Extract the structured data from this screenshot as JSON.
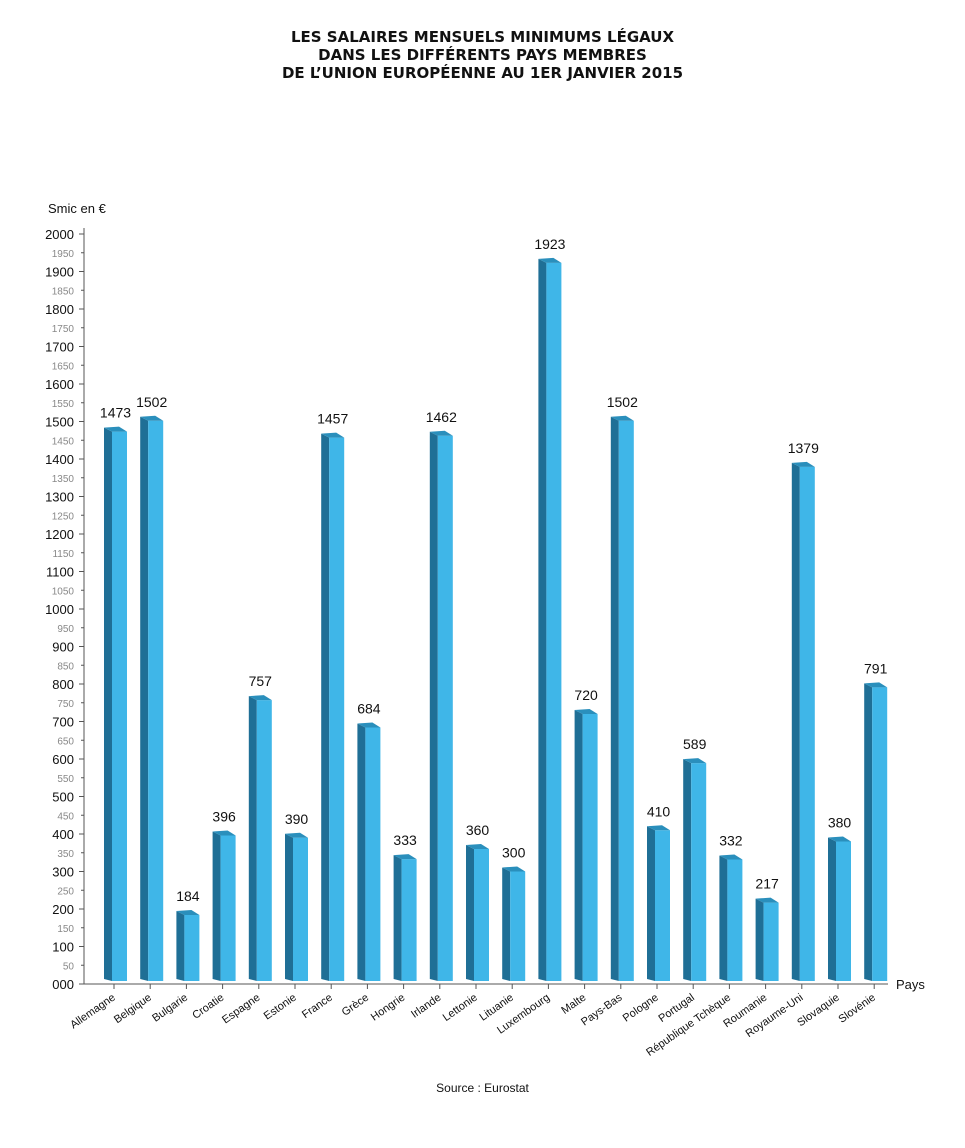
{
  "title_lines": [
    "LES SALAIRES MENSUELS MINIMUMS LÉGAUX",
    "DANS LES DIFFÉRENTS PAYS MEMBRES",
    "DE L’UNION EUROPÉENNE AU 1ER JANVIER 2015"
  ],
  "source": "Source : Eurostat",
  "colors": {
    "bar_front": "#3fb6e8",
    "bar_side": "#1f6f96",
    "bar_top": "#2a8fbc",
    "axis": "#555555"
  },
  "chart_data": {
    "type": "bar",
    "title": "LES SALAIRES MENSUELS MINIMUMS LÉGAUX DANS LES DIFFÉRENTS PAYS MEMBRES DE L’UNION EUROPÉENNE AU 1ER JANVIER 2015",
    "ylabel": "Smic en €",
    "xlabel": "Pays",
    "ylim": [
      0,
      2000
    ],
    "grid": false,
    "legend": "none",
    "categories": [
      "Allemagne",
      "Belgique",
      "Bulgarie",
      "Croatie",
      "Espagne",
      "Estonie",
      "France",
      "Grèce",
      "Hongrie",
      "Irlande",
      "Lettonie",
      "Lituanie",
      "Luxembourg",
      "Malte",
      "Pays-Bas",
      "Pologne",
      "Portugal",
      "République Tchèque",
      "Roumanie",
      "Royaume-Uni",
      "Slovaquie",
      "Slovénie"
    ],
    "values": [
      1473,
      1502,
      184,
      396,
      757,
      390,
      1457,
      684,
      333,
      1462,
      360,
      300,
      1923,
      720,
      1502,
      410,
      589,
      332,
      217,
      1379,
      380,
      791
    ],
    "value_labels": [
      "1473",
      "1502",
      "184",
      "396",
      "757",
      "390",
      "1457",
      "684",
      "333",
      "1462",
      "360",
      "300",
      "1923",
      "720",
      "1502",
      "410",
      "589",
      "332",
      "217",
      "1379",
      "380",
      "791"
    ],
    "y_ticks_major": [
      "000",
      "100",
      "200",
      "300",
      "400",
      "500",
      "600",
      "700",
      "800",
      "900",
      "1000",
      "1100",
      "1200",
      "1300",
      "1400",
      "1500",
      "1600",
      "1700",
      "1800",
      "1900",
      "2000"
    ],
    "y_ticks_minor": [
      "50",
      "150",
      "250",
      "350",
      "450",
      "550",
      "650",
      "750",
      "850",
      "950",
      "1050",
      "1150",
      "1250",
      "1350",
      "1450",
      "1550",
      "1650",
      "1750",
      "1850",
      "1950"
    ]
  }
}
